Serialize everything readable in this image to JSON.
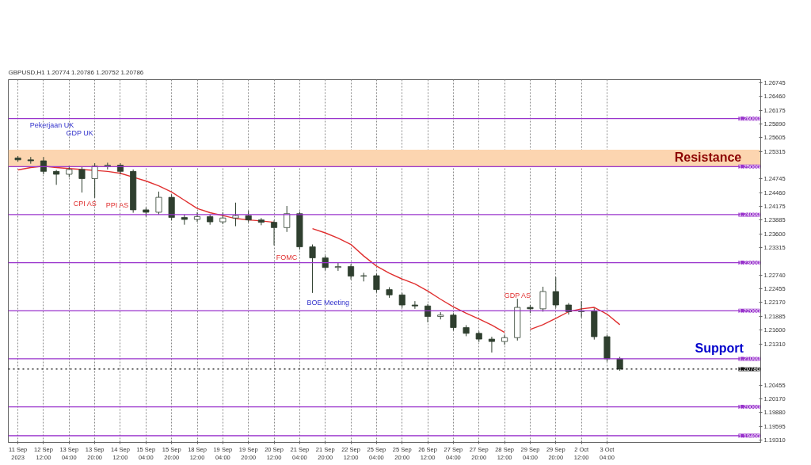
{
  "chart_data": {
    "type": "candlestick",
    "title": "GBPUSD,H1  1.20774 1.20786 1.20752 1.20786",
    "categories": [
      "11 Sep 2023",
      null,
      "12 Sep 12:00",
      null,
      "13 Sep 04:00",
      null,
      "13 Sep 20:00",
      null,
      "14 Sep 12:00",
      null,
      "15 Sep 04:00",
      null,
      "15 Sep 20:00",
      null,
      "18 Sep 12:00",
      null,
      "19 Sep 04:00",
      null,
      "19 Sep 20:00",
      null,
      "20 Sep 12:00",
      null,
      "21 Sep 04:00",
      null,
      "21 Sep 20:00",
      null,
      "22 Sep 12:00",
      null,
      "25 Sep 04:00",
      null,
      "25 Sep 20:00",
      null,
      "26 Sep 12:00",
      null,
      "27 Sep 04:00",
      null,
      "27 Sep 20:00",
      null,
      "28 Sep 12:00",
      null,
      "29 Sep 04:00",
      null,
      "29 Sep 20:00",
      null,
      "2 Oct 12:00",
      null,
      "3 Oct 04:00",
      null,
      null,
      null,
      null,
      null,
      null,
      null,
      null,
      null,
      null,
      null,
      null
    ],
    "ohlc": [
      [
        1.2518,
        1.2522,
        1.251,
        1.2514
      ],
      [
        1.2514,
        1.252,
        1.2506,
        1.2512
      ],
      [
        1.2512,
        1.252,
        1.2484,
        1.249
      ],
      [
        1.249,
        1.2493,
        1.2462,
        1.2484
      ],
      [
        1.2484,
        1.2502,
        1.2478,
        1.2494
      ],
      [
        1.2494,
        1.25,
        1.2446,
        1.2475
      ],
      [
        1.2475,
        1.2507,
        1.2435,
        1.2501
      ],
      [
        1.2501,
        1.2508,
        1.2494,
        1.2503
      ],
      [
        1.2503,
        1.2507,
        1.2484,
        1.249
      ],
      [
        1.249,
        1.2494,
        1.2404,
        1.241
      ],
      [
        1.241,
        1.2415,
        1.2396,
        1.2405
      ],
      [
        1.2405,
        1.2448,
        1.24,
        1.2436
      ],
      [
        1.2436,
        1.2442,
        1.2388,
        1.2394
      ],
      [
        1.2394,
        1.24,
        1.2379,
        1.239
      ],
      [
        1.239,
        1.2405,
        1.2385,
        1.2396
      ],
      [
        1.2396,
        1.24,
        1.2379,
        1.2385
      ],
      [
        1.2385,
        1.2405,
        1.238,
        1.2393
      ],
      [
        1.2393,
        1.2425,
        1.2376,
        1.2398
      ],
      [
        1.2398,
        1.2408,
        1.2384,
        1.2389
      ],
      [
        1.2389,
        1.2393,
        1.2378,
        1.2384
      ],
      [
        1.2384,
        1.2388,
        1.2336,
        1.2373
      ],
      [
        1.2373,
        1.2418,
        1.2364,
        1.2402
      ],
      [
        1.2402,
        1.2406,
        1.2327,
        1.2333
      ],
      [
        1.2333,
        1.2338,
        1.2237,
        1.231
      ],
      [
        1.231,
        1.2315,
        1.2284,
        1.229
      ],
      [
        1.229,
        1.2301,
        1.2283,
        1.2292
      ],
      [
        1.2292,
        1.2297,
        1.2265,
        1.2272
      ],
      [
        1.2272,
        1.2279,
        1.2261,
        1.2273
      ],
      [
        1.2273,
        1.2277,
        1.2238,
        1.2244
      ],
      [
        1.2244,
        1.2249,
        1.2227,
        1.2233
      ],
      [
        1.2233,
        1.2237,
        1.2206,
        1.2212
      ],
      [
        1.2212,
        1.222,
        1.2204,
        1.221
      ],
      [
        1.221,
        1.2214,
        1.2176,
        1.2188
      ],
      [
        1.2188,
        1.2197,
        1.2182,
        1.2191
      ],
      [
        1.2191,
        1.2195,
        1.2159,
        1.2165
      ],
      [
        1.2165,
        1.217,
        1.2147,
        1.2153
      ],
      [
        1.2153,
        1.2157,
        1.2135,
        1.2141
      ],
      [
        1.2141,
        1.2146,
        1.2113,
        1.2136
      ],
      [
        1.2136,
        1.215,
        1.2129,
        1.2144
      ],
      [
        1.2144,
        1.2225,
        1.2138,
        1.2207
      ],
      [
        1.2207,
        1.2212,
        1.2195,
        1.2204
      ],
      [
        1.2204,
        1.225,
        1.2198,
        1.224
      ],
      [
        1.224,
        1.227,
        1.2206,
        1.2212
      ],
      [
        1.2212,
        1.2216,
        1.2192,
        1.2198
      ],
      [
        1.2198,
        1.222,
        1.2186,
        1.22
      ],
      [
        1.22,
        1.2205,
        1.214,
        1.2146
      ],
      [
        1.2146,
        1.215,
        1.2094,
        1.21
      ],
      [
        1.21,
        1.2104,
        1.20752,
        1.20786
      ],
      null,
      null,
      null,
      null,
      null,
      null,
      null,
      null,
      null,
      null,
      null
    ],
    "color": "#2f3f2f",
    "series": [
      {
        "type": "line",
        "color": "#e03030",
        "values": [
          1.2493,
          1.2498,
          1.2501,
          1.2498,
          1.2496,
          1.2494,
          1.2492,
          1.249,
          1.2486,
          1.2478,
          1.247,
          1.246,
          1.2447,
          1.243,
          1.2413,
          1.2404,
          1.2398,
          1.2392,
          1.2389,
          1.2387,
          1.2384,
          null,
          null,
          1.2371,
          1.2362,
          1.2351,
          1.2338,
          1.2314,
          1.2293,
          1.2278,
          1.2266,
          1.2256,
          1.2241,
          1.2224,
          1.2208,
          1.2195,
          1.2183,
          1.217,
          1.2155,
          null,
          1.2161,
          1.2171,
          1.2184,
          1.2198,
          1.2204,
          1.2207,
          1.2193,
          1.2171,
          null,
          null,
          null,
          null,
          null,
          null,
          null,
          null,
          null,
          null,
          null
        ]
      }
    ],
    "ylim": [
      1.1926,
      1.2681
    ],
    "yticks": [
      1.26745,
      {
        "value": 1.2646,
        "label": "1.26460"
      },
      1.26175,
      {
        "value": 1.2589,
        "label": "1.25890"
      },
      1.25605,
      1.25315,
      1.24745,
      {
        "value": 1.2446,
        "label": "1.24460"
      },
      1.24175,
      1.23885,
      {
        "value": 1.236,
        "label": "1.23600"
      },
      1.23315,
      {
        "value": 1.2274,
        "label": "1.22740"
      },
      1.22455,
      {
        "value": 1.2217,
        "label": "1.22170"
      },
      1.21885,
      {
        "value": 1.216,
        "label": "1.21600"
      },
      {
        "value": 1.2131,
        "label": "1.21310"
      },
      1.20455,
      {
        "value": 1.2017,
        "label": "1.20170"
      },
      {
        "value": 1.1988,
        "label": "1.19880"
      },
      1.19595,
      {
        "value": 1.1931,
        "label": "1.19310"
      }
    ],
    "grid": "x",
    "ref_lines": [
      {
        "axis": "y",
        "value": 1.26,
        "label": "1.26000",
        "color": "#9933cc",
        "line_style": "solid"
      },
      {
        "axis": "y",
        "value": 1.25,
        "label": "1.25000",
        "color": "#9933cc",
        "line_style": "solid"
      },
      {
        "axis": "y",
        "value": 1.24,
        "label": "1.24000",
        "color": "#9933cc",
        "line_style": "solid"
      },
      {
        "axis": "y",
        "value": 1.23,
        "label": "1.23000",
        "color": "#9933cc",
        "line_style": "solid"
      },
      {
        "axis": "y",
        "value": 1.22,
        "label": "1.22000",
        "color": "#9933cc",
        "line_style": "solid"
      },
      {
        "axis": "y",
        "value": 1.21,
        "label": "1.21000",
        "color": "#9933cc",
        "line_style": "solid"
      },
      {
        "axis": "y",
        "value": 1.2,
        "label": "1.20000",
        "color": "#9933cc",
        "line_style": "solid"
      },
      {
        "axis": "y",
        "value": 1.194,
        "label": "1.19400",
        "color": "#9933cc",
        "line_style": "solid"
      },
      {
        "axis": "y",
        "value": 1.20786,
        "label": "1.20786",
        "color": "#111111",
        "line_style": "dotted"
      }
    ],
    "bands": [
      {
        "axis": "y",
        "from": 1.25,
        "to": 1.2535,
        "color": "#fcd5b0"
      }
    ],
    "annotations": [
      "Pekerjaan UK",
      "GDP UK",
      "CPI AS",
      "PPI AS",
      "FOMC",
      "BOE Meeting",
      "GDP AS",
      "Resistance",
      "Support"
    ]
  }
}
